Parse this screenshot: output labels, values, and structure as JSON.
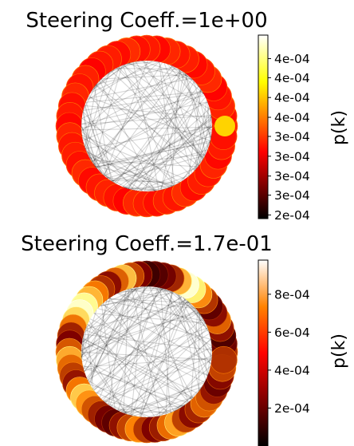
{
  "chart_data": [
    {
      "type": "heatmap",
      "title": "Steering Coeff.=1e+00",
      "colorbar": {
        "label": "p(k)",
        "range": [
          0.00022,
          0.00047
        ],
        "ticks": [
          {
            "value": 0.000225,
            "label": "2e-04"
          },
          {
            "value": 0.000252,
            "label": "3e-04"
          },
          {
            "value": 0.000278,
            "label": "3e-04"
          },
          {
            "value": 0.000305,
            "label": "3e-04"
          },
          {
            "value": 0.000332,
            "label": "3e-04"
          },
          {
            "value": 0.000358,
            "label": "4e-04"
          },
          {
            "value": 0.000385,
            "label": "4e-04"
          },
          {
            "value": 0.000412,
            "label": "4e-04"
          },
          {
            "value": 0.000438,
            "label": "4e-04"
          }
        ]
      },
      "ring_values": [
        0.000322,
        0.000316,
        0.000325,
        0.000318,
        0.000312,
        0.000327,
        0.00032,
        0.000314,
        0.000323,
        0.000319,
        0.000326,
        0.000313,
        0.000321,
        0.000317,
        0.000328,
        0.000315,
        0.000322,
        0.000319,
        0.000311,
        0.000324,
        0.000318,
        0.000326,
        0.000316,
        0.000321,
        0.000313,
        0.000325,
        0.000319,
        0.000322,
        0.000317,
        0.000327,
        0.000314,
        0.00032,
        0.000324,
        0.000318,
        0.000312,
        0.000326,
        0.000321,
        0.000316,
        0.000323,
        0.000319,
        0.000328,
        0.000315,
        0.000322,
        0.000318,
        0.000325,
        0.000313,
        0.000321,
        0.000317
      ],
      "highlight": {
        "angle_deg": 0,
        "value": 0.00039
      }
    },
    {
      "type": "heatmap",
      "title": "Steering Coeff.=1.7e-01",
      "colorbar": {
        "label": "p(k)",
        "range": [
          0.0,
          0.00098
        ],
        "ticks": [
          {
            "value": 0.0002,
            "label": "2e-04"
          },
          {
            "value": 0.0004,
            "label": "4e-04"
          },
          {
            "value": 0.0006,
            "label": "6e-04"
          },
          {
            "value": 0.0008,
            "label": "8e-04"
          }
        ]
      },
      "ring_values": [
        0.00032,
        0.0002,
        0.00015,
        0.00028,
        0.00044,
        0.00026,
        0.00018,
        0.00035,
        0.00052,
        0.00072,
        0.0009,
        0.00058,
        0.0003,
        0.00022,
        0.00016,
        0.00012,
        0.00024,
        0.00038,
        0.00062,
        0.00042,
        0.00026,
        0.00034,
        0.00048,
        0.0006,
        0.00078,
        0.00088,
        0.00066,
        0.00046,
        0.0003,
        0.00024,
        0.00042,
        0.00058,
        0.00044,
        0.00036,
        0.00028,
        0.00048,
        0.00064,
        0.00052,
        0.0004,
        0.0003,
        0.00022,
        0.00018,
        0.00028,
        0.00038,
        0.0005,
        0.00034,
        0.00024,
        0.0003,
        0.00046,
        0.00056,
        0.00036,
        0.00026,
        0.00032,
        0.00044,
        0.0004,
        0.00028,
        0.0002,
        0.00026,
        0.00038,
        0.00034
      ]
    }
  ]
}
